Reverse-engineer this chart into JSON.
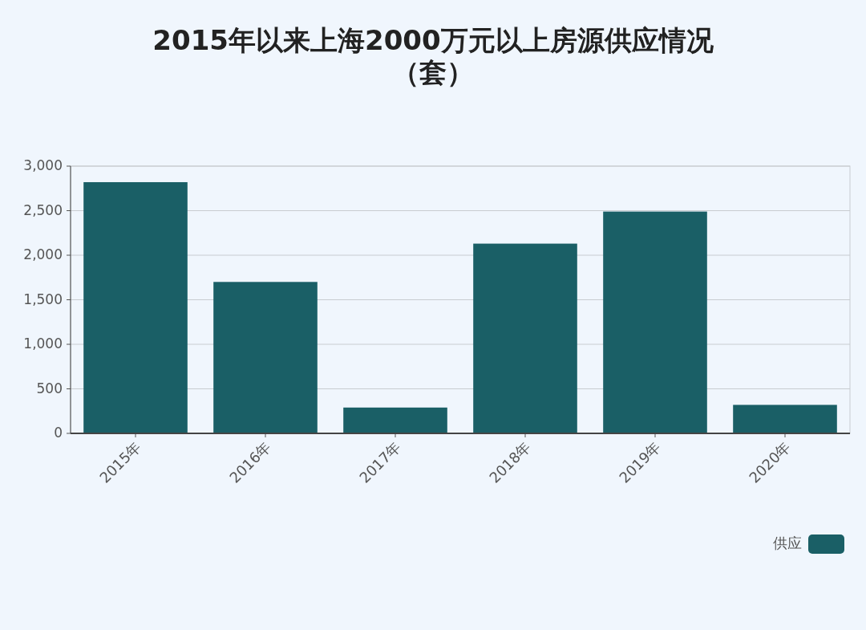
{
  "chart_data": {
    "type": "bar",
    "title": "2015年以来上海2000万元以上房源供应情况（套）",
    "categories": [
      "2015年",
      "2016年",
      "2017年",
      "2018年",
      "2019年",
      "2020年"
    ],
    "series": [
      {
        "name": "供应",
        "color": "#1a5f66",
        "values": [
          2820,
          1700,
          290,
          2130,
          2490,
          320
        ]
      }
    ],
    "ylim": [
      0,
      3000
    ],
    "yticks": [
      0,
      500,
      {
        "value": 1000,
        "label": "1,000"
      },
      {
        "value": 1500,
        "label": "1,500"
      },
      {
        "value": 2000,
        "label": "2,000"
      },
      {
        "value": 2500,
        "label": "2,500"
      },
      {
        "value": 3000,
        "label": "3,000"
      }
    ],
    "grid": "y",
    "legend": "bottom right"
  }
}
